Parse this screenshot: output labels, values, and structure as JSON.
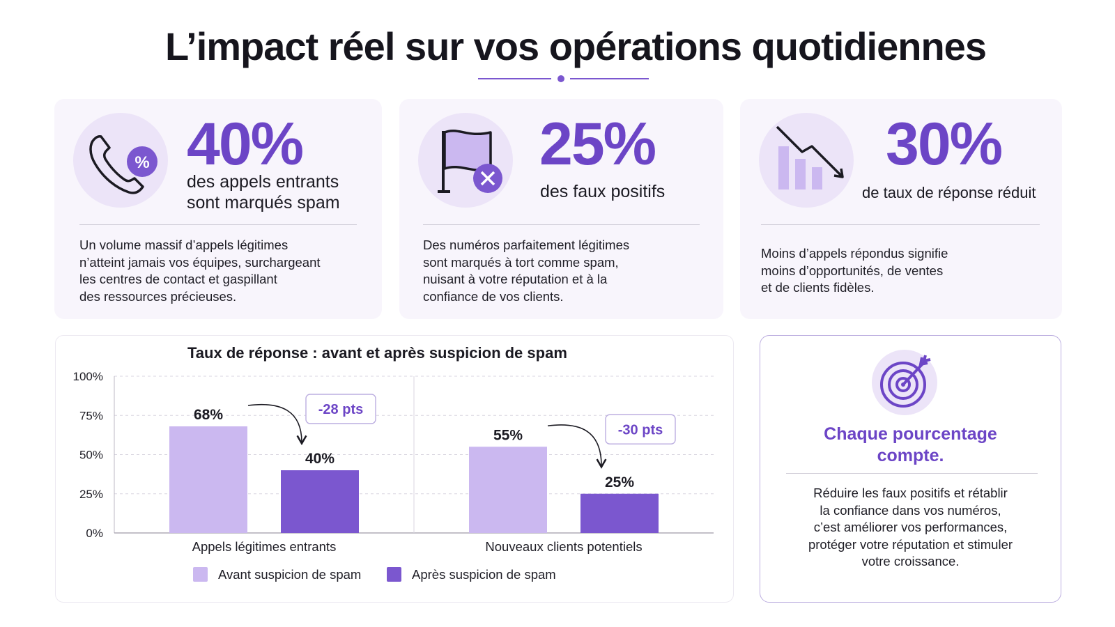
{
  "header": {
    "title": "L’impact réel sur vos opérations quotidiennes"
  },
  "colors": {
    "accent": "#6c45c6",
    "before": "#cbb8f0",
    "after": "#7b57cf",
    "card_bg": "#f8f5fc"
  },
  "stats": [
    {
      "icon": "phone-percent-icon",
      "value": "40%",
      "label_lines": [
        "des appels entrants",
        "sont marqués spam"
      ],
      "body_lines": [
        "Un volume massif d’appels légitimes",
        "n’atteint jamais vos équipes, surchargeant",
        "les centres de contact et gaspillant",
        "des ressources précieuses."
      ]
    },
    {
      "icon": "flag-x-icon",
      "value": "25%",
      "label_lines": [
        "des faux positifs"
      ],
      "body_lines": [
        "Des numéros parfaitement légitimes",
        "sont marqués à tort comme spam,",
        "nuisant à votre réputation et à la",
        "confiance de vos clients."
      ]
    },
    {
      "icon": "declining-chart-icon",
      "value": "30%",
      "label_lines": [
        "de taux de réponse réduit"
      ],
      "body_lines": [
        "Moins d’appels répondus signifie",
        "moins d’opportunités, de ventes",
        "et de clients fidèles."
      ]
    }
  ],
  "chart_data": {
    "type": "bar",
    "title": "Taux de réponse : avant et après suspicion de spam",
    "categories": [
      "Appels légitimes entrants",
      "Nouveaux clients potentiels"
    ],
    "series": [
      {
        "name": "Avant suspicion de spam",
        "values": [
          68,
          55
        ]
      },
      {
        "name": "Après suspicion de spam",
        "values": [
          40,
          25
        ]
      }
    ],
    "data_labels": [
      [
        "68%",
        "40%"
      ],
      [
        "55%",
        "25%"
      ]
    ],
    "differences": [
      "-28 pts",
      "-30 pts"
    ],
    "y_ticks": [
      0,
      25,
      50,
      75,
      100
    ],
    "y_tick_labels": [
      "0%",
      "25%",
      "50%",
      "75%",
      "100%"
    ],
    "ylim": [
      0,
      100
    ],
    "grid": true,
    "legend_position": "bottom"
  },
  "callout": {
    "icon": "target-arrow-icon",
    "heading_lines": [
      "Chaque pourcentage",
      "compte."
    ],
    "body_lines": [
      "Réduire les faux positifs et rétablir",
      "la confiance dans vos numéros,",
      "c’est améliorer vos performances,",
      "protéger votre réputation et stimuler",
      "votre croissance."
    ]
  }
}
